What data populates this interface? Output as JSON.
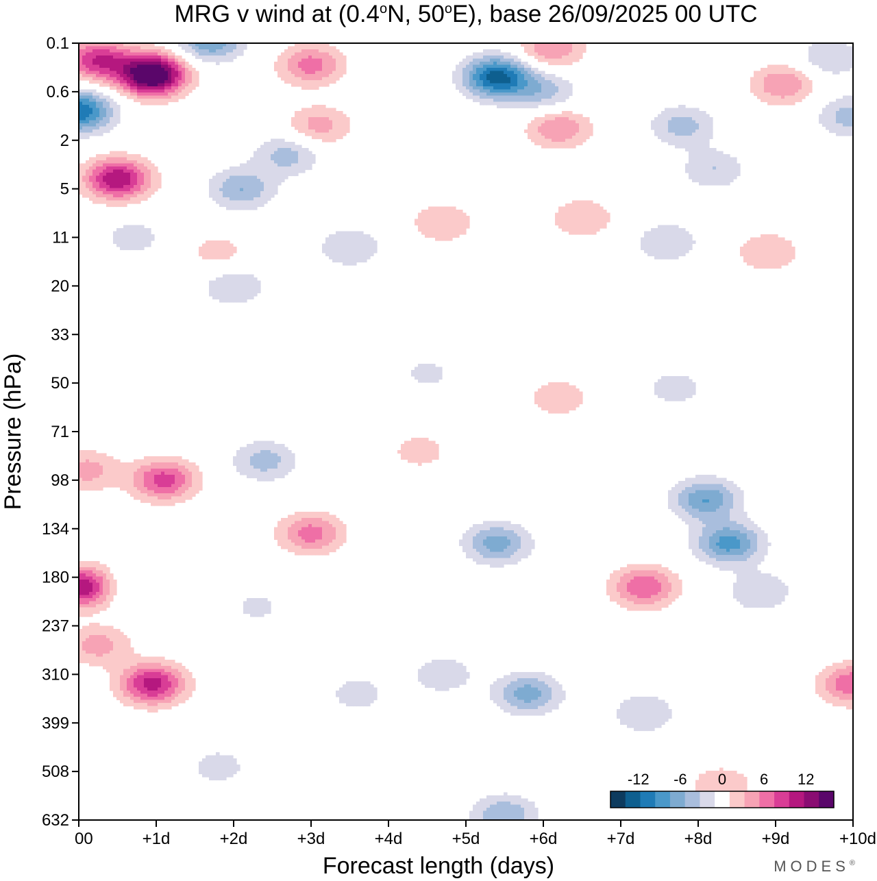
{
  "chart_data": {
    "type": "heatmap",
    "title": "MRG v wind at (0.4°N, 50°E),  base 26/09/2025  00 UTC",
    "title_parts": {
      "prefix": "MRG v wind at (0.4",
      "lat_unit": "o",
      "lat_suffix": "N, 50",
      "lon_unit": "o",
      "suffix": "E),  base 26/09/2025  00 UTC"
    },
    "xlabel": "Forecast length (days)",
    "ylabel": "Pressure (hPa)",
    "x_ticks": [
      "00",
      "+1d",
      "+2d",
      "+3d",
      "+4d",
      "+5d",
      "+6d",
      "+7d",
      "+8d",
      "+9d",
      "+10d"
    ],
    "y_ticks": [
      "0.1",
      "0.6",
      "2",
      "5",
      "11",
      "20",
      "33",
      "50",
      "71",
      "98",
      "134",
      "180",
      "237",
      "310",
      "399",
      "508",
      "632"
    ],
    "xlim": [
      0,
      10
    ],
    "y_index_range": [
      0,
      16
    ],
    "colorbar": {
      "tick_labels": [
        "-12",
        "-6",
        "0",
        "6",
        "12"
      ],
      "tick_values": [
        -12,
        -6,
        0,
        6,
        12
      ],
      "levels": [
        -16,
        -14,
        -12,
        -10,
        -8,
        -6,
        -4,
        -2,
        2,
        4,
        6,
        8,
        10,
        12,
        14,
        16
      ],
      "colors": [
        "#0d3b5e",
        "#0e5f8f",
        "#1f7bb6",
        "#4a98c9",
        "#7eabd1",
        "#a9bedd",
        "#d9d9e9",
        "#ffffff",
        "#fbcaca",
        "#f7a3b5",
        "#ef6fa6",
        "#d93d96",
        "#b5187f",
        "#8a0c72",
        "#5a066a"
      ]
    },
    "field_features": [
      {
        "day": 0.95,
        "p_index": 0.65,
        "value": 18
      },
      {
        "day": 0.25,
        "p_index": 0.35,
        "value": 10
      },
      {
        "day": 1.7,
        "p_index": -0.05,
        "value": -8
      },
      {
        "day": 0.0,
        "p_index": 1.4,
        "value": -12
      },
      {
        "day": 0.5,
        "p_index": 2.8,
        "value": 12
      },
      {
        "day": 2.1,
        "p_index": 3.0,
        "value": -6
      },
      {
        "day": 2.7,
        "p_index": 2.3,
        "value": -5
      },
      {
        "day": 3.0,
        "p_index": 0.45,
        "value": 7
      },
      {
        "day": 3.1,
        "p_index": 1.7,
        "value": 5
      },
      {
        "day": 5.4,
        "p_index": 0.7,
        "value": -13
      },
      {
        "day": 6.0,
        "p_index": 1.0,
        "value": -5
      },
      {
        "day": 6.1,
        "p_index": 0.1,
        "value": 6
      },
      {
        "day": 6.2,
        "p_index": 1.75,
        "value": 6
      },
      {
        "day": 7.8,
        "p_index": 1.7,
        "value": -5
      },
      {
        "day": 9.1,
        "p_index": 0.85,
        "value": 6
      },
      {
        "day": 9.7,
        "p_index": 0.3,
        "value": -4
      },
      {
        "day": 9.95,
        "p_index": 1.5,
        "value": -5
      },
      {
        "day": 8.2,
        "p_index": 2.6,
        "value": -4
      },
      {
        "day": 6.5,
        "p_index": 3.6,
        "value": 4
      },
      {
        "day": 4.7,
        "p_index": 3.7,
        "value": 4
      },
      {
        "day": 7.6,
        "p_index": 4.1,
        "value": -4
      },
      {
        "day": 3.5,
        "p_index": 4.2,
        "value": -4
      },
      {
        "day": 1.8,
        "p_index": 4.3,
        "value": 3
      },
      {
        "day": 8.9,
        "p_index": 4.3,
        "value": 4
      },
      {
        "day": 2.0,
        "p_index": 5.0,
        "value": -4
      },
      {
        "day": 0.7,
        "p_index": 4.0,
        "value": -3
      },
      {
        "day": 7.7,
        "p_index": 7.1,
        "value": -3
      },
      {
        "day": 4.5,
        "p_index": 6.8,
        "value": -2.5
      },
      {
        "day": 6.2,
        "p_index": 7.3,
        "value": 3.5
      },
      {
        "day": 1.1,
        "p_index": 9.0,
        "value": 9
      },
      {
        "day": 0.1,
        "p_index": 8.8,
        "value": 5
      },
      {
        "day": 3.0,
        "p_index": 10.1,
        "value": 7
      },
      {
        "day": 2.4,
        "p_index": 8.6,
        "value": -5
      },
      {
        "day": 4.4,
        "p_index": 8.4,
        "value": 3
      },
      {
        "day": 5.4,
        "p_index": 10.3,
        "value": -7
      },
      {
        "day": 8.1,
        "p_index": 9.4,
        "value": -8
      },
      {
        "day": 8.4,
        "p_index": 10.3,
        "value": -9
      },
      {
        "day": 8.8,
        "p_index": 11.3,
        "value": -4
      },
      {
        "day": 7.3,
        "p_index": 11.2,
        "value": 8
      },
      {
        "day": 0.05,
        "p_index": 11.2,
        "value": 12
      },
      {
        "day": 0.25,
        "p_index": 12.4,
        "value": 5
      },
      {
        "day": 0.95,
        "p_index": 13.2,
        "value": 11
      },
      {
        "day": 0.6,
        "p_index": 11.2,
        "value": -2.5
      },
      {
        "day": 2.3,
        "p_index": 11.6,
        "value": -2.5
      },
      {
        "day": 5.8,
        "p_index": 13.4,
        "value": -7
      },
      {
        "day": 4.7,
        "p_index": 13.0,
        "value": -3.5
      },
      {
        "day": 3.6,
        "p_index": 13.4,
        "value": -3
      },
      {
        "day": 1.8,
        "p_index": 14.9,
        "value": -3
      },
      {
        "day": 5.5,
        "p_index": 15.9,
        "value": -6
      },
      {
        "day": 8.3,
        "p_index": 15.3,
        "value": 4
      },
      {
        "day": 10.0,
        "p_index": 13.2,
        "value": 8
      },
      {
        "day": 7.3,
        "p_index": 13.8,
        "value": -4
      }
    ]
  },
  "branding": {
    "logo_text": "MODES",
    "mark": "®"
  }
}
